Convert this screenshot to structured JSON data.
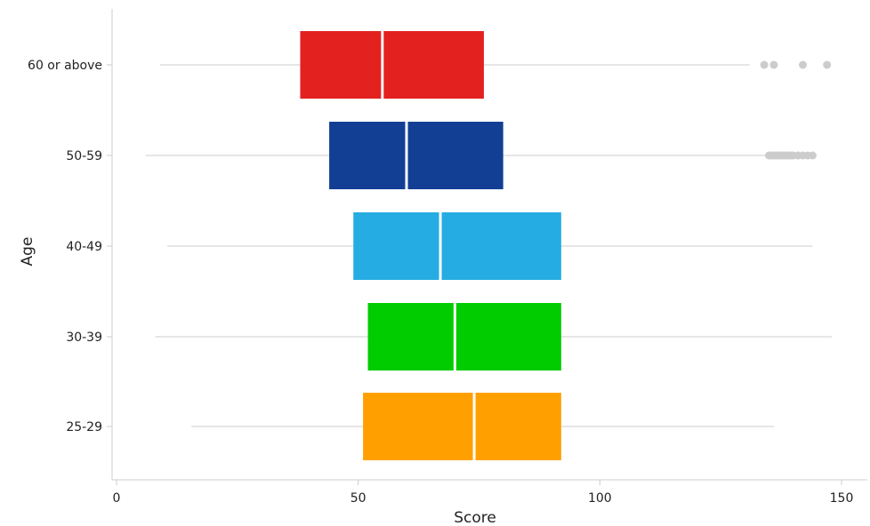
{
  "chart_data": {
    "type": "boxplot",
    "title": "",
    "xlabel": "Score",
    "ylabel": "Age",
    "xlim": [
      -2,
      152
    ],
    "x_ticks": [
      0,
      50,
      100,
      150
    ],
    "x_tick_labels": [
      "0",
      "50",
      "100",
      "150"
    ],
    "categories": [
      "60 or above",
      "50-59",
      "40-49",
      "30-39",
      "25-29"
    ],
    "grid": false,
    "legend": "none",
    "series": [
      {
        "category": "60 or above",
        "color": "#e3211e",
        "whisker_low": 9,
        "q1": 38,
        "median": 55,
        "q3": 76,
        "whisker_high": 131,
        "outliers": [
          134,
          136,
          142,
          147
        ]
      },
      {
        "category": "50-59",
        "color": "#123f94",
        "whisker_low": 6,
        "q1": 44,
        "median": 60,
        "q3": 80,
        "whisker_high": 135,
        "outliers": [
          135,
          135.5,
          136,
          136.5,
          137,
          137.5,
          138,
          138.5,
          139,
          139.5,
          140,
          141,
          142,
          143,
          144
        ]
      },
      {
        "category": "40-49",
        "color": "#25ace2",
        "whisker_low": 10.5,
        "q1": 49,
        "median": 67,
        "q3": 92,
        "whisker_high": 144,
        "outliers": []
      },
      {
        "category": "30-39",
        "color": "#00cc00",
        "whisker_low": 8,
        "q1": 52,
        "median": 70,
        "q3": 92,
        "whisker_high": 148,
        "outliers": []
      },
      {
        "category": "25-29",
        "color": "#ffa000",
        "whisker_low": 15.5,
        "q1": 51,
        "median": 74,
        "q3": 92,
        "whisker_high": 136,
        "outliers": []
      }
    ]
  }
}
